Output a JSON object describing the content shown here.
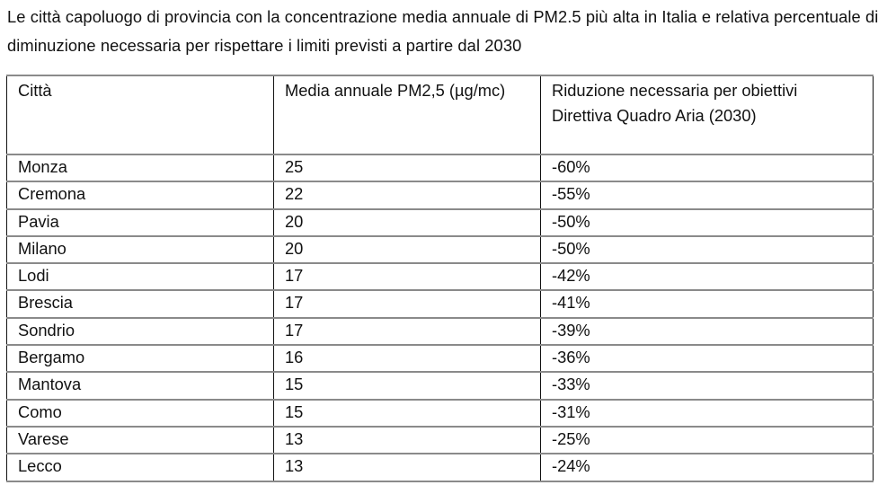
{
  "title": "Le città capoluogo di provincia con la concentrazione media annuale di PM2.5 più alta in Italia e relativa percentuale di diminuzione necessaria per rispettare i limiti previsti a partire dal 2030",
  "table": {
    "headers": [
      "Città",
      "Media annuale PM2,5 (µg/mc)",
      "Riduzione necessaria per obiettivi Direttiva Quadro Aria (2030)"
    ],
    "rows": [
      [
        "Monza",
        "25",
        "-60%"
      ],
      [
        "Cremona",
        "22",
        "-55%"
      ],
      [
        "Pavia",
        "20",
        "-50%"
      ],
      [
        "Milano",
        "20",
        "-50%"
      ],
      [
        "Lodi",
        "17",
        "-42%"
      ],
      [
        "Brescia",
        "17",
        "-41%"
      ],
      [
        "Sondrio",
        "17",
        "-39%"
      ],
      [
        "Bergamo",
        "16",
        "-36%"
      ],
      [
        "Mantova",
        "15",
        "-33%"
      ],
      [
        "Como",
        "15",
        "-31%"
      ],
      [
        "Varese",
        "13",
        "-25%"
      ],
      [
        "Lecco",
        "13",
        "-24%"
      ]
    ]
  }
}
